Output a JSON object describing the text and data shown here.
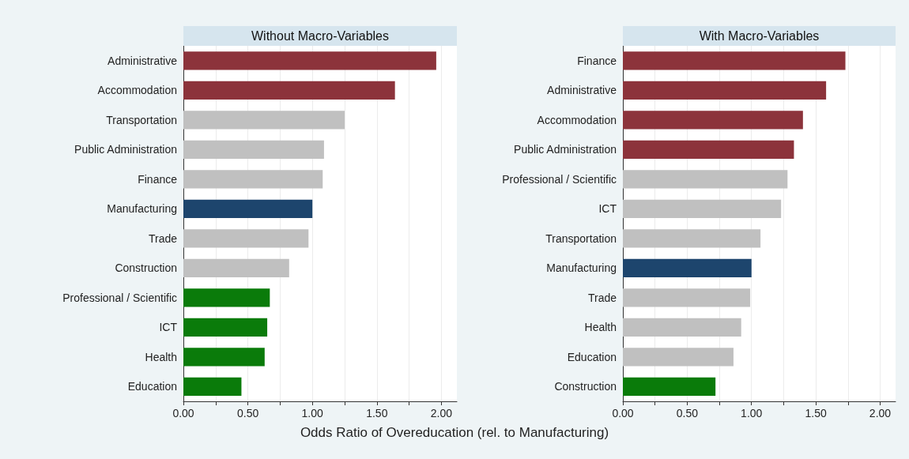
{
  "chart_data": [
    {
      "type": "bar",
      "orientation": "horizontal",
      "title": "Without Macro-Variables",
      "xlabel": "Odds Ratio of Overeducation (rel. to Manufacturing)",
      "categories": [
        "Administrative",
        "Accommodation",
        "Transportation",
        "Public Administration",
        "Finance",
        "Manufacturing",
        "Trade",
        "Construction",
        "Professional / Scientific",
        "ICT",
        "Health",
        "Education"
      ],
      "values": [
        1.96,
        1.64,
        1.25,
        1.09,
        1.08,
        1.0,
        0.97,
        0.82,
        0.67,
        0.65,
        0.63,
        0.45
      ],
      "colors": [
        "#8c333b",
        "#8c333b",
        "#c0c0c0",
        "#c0c0c0",
        "#c0c0c0",
        "#1d456d",
        "#c0c0c0",
        "#c0c0c0",
        "#0a7b0a",
        "#0a7b0a",
        "#0a7b0a",
        "#0a7b0a"
      ],
      "xlim": [
        0,
        2.12
      ],
      "xticks": [
        {
          "value": 0,
          "label": "0.00"
        },
        {
          "value": 0.25,
          "label": null
        },
        {
          "value": 0.5,
          "label": "0.50"
        },
        {
          "value": 0.75,
          "label": null
        },
        {
          "value": 1,
          "label": "1.00"
        },
        {
          "value": 1.25,
          "label": null
        },
        {
          "value": 1.5,
          "label": "1.50"
        },
        {
          "value": 1.75,
          "label": null
        },
        {
          "value": 2,
          "label": "2.00"
        }
      ],
      "grid": "x"
    },
    {
      "type": "bar",
      "orientation": "horizontal",
      "title": "With Macro-Variables",
      "categories": [
        "Finance",
        "Administrative",
        "Accommodation",
        "Public Administration",
        "Professional / Scientific",
        "ICT",
        "Transportation",
        "Manufacturing",
        "Trade",
        "Health",
        "Education",
        "Construction"
      ],
      "values": [
        1.73,
        1.58,
        1.4,
        1.33,
        1.28,
        1.23,
        1.07,
        1.0,
        0.99,
        0.92,
        0.86,
        0.72
      ],
      "colors": [
        "#8c333b",
        "#8c333b",
        "#8c333b",
        "#8c333b",
        "#c0c0c0",
        "#c0c0c0",
        "#c0c0c0",
        "#1d456d",
        "#c0c0c0",
        "#c0c0c0",
        "#c0c0c0",
        "#0a7b0a"
      ],
      "xlim": [
        0,
        2.12
      ],
      "xticks": [
        {
          "value": 0,
          "label": "0.00"
        },
        {
          "value": 0.25,
          "label": null
        },
        {
          "value": 0.5,
          "label": "0.50"
        },
        {
          "value": 0.75,
          "label": null
        },
        {
          "value": 1,
          "label": "1.00"
        },
        {
          "value": 1.25,
          "label": null
        },
        {
          "value": 1.5,
          "label": "1.50"
        },
        {
          "value": 1.75,
          "label": null
        },
        {
          "value": 2,
          "label": "2.00"
        }
      ],
      "grid": "x"
    }
  ]
}
